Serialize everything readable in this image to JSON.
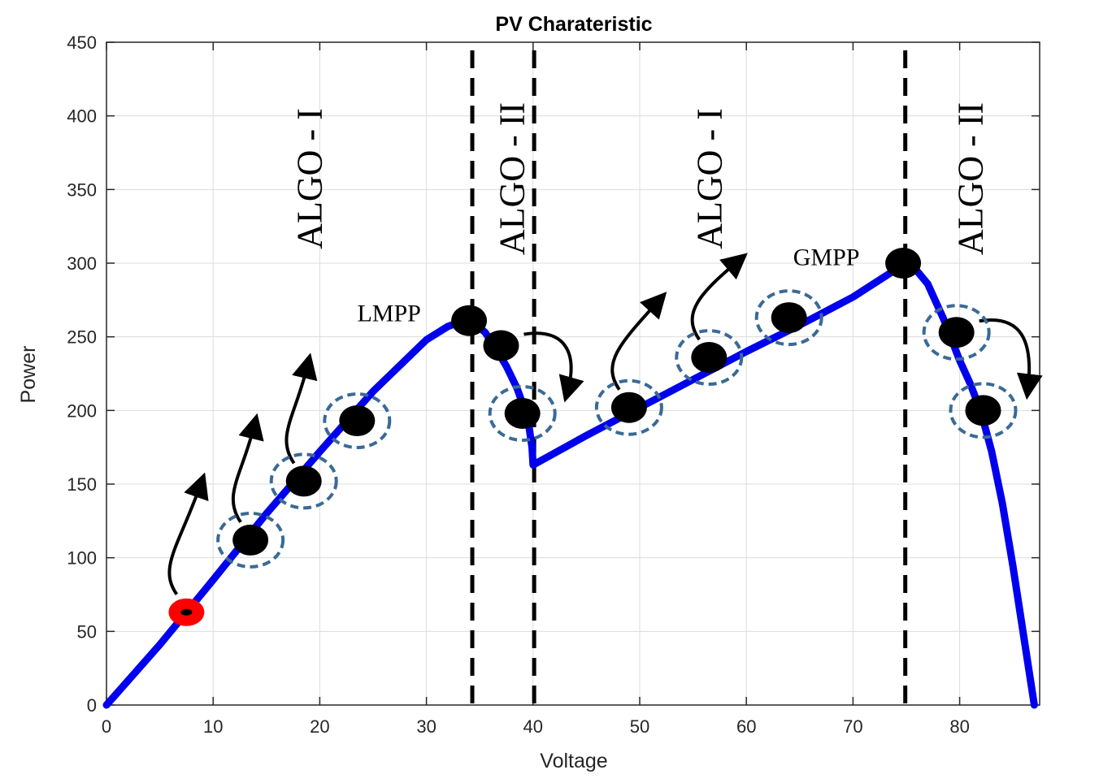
{
  "chart_data": {
    "type": "line",
    "title": "PV Charateristic",
    "xlabel": "Voltage",
    "ylabel": "Power",
    "xlim": [
      0,
      87.5
    ],
    "ylim": [
      0,
      450
    ],
    "xticks": [
      0,
      10,
      20,
      30,
      40,
      50,
      60,
      70,
      80
    ],
    "yticks": [
      0,
      50,
      100,
      150,
      200,
      250,
      300,
      350,
      400,
      450
    ],
    "grid": true,
    "series": [
      {
        "color": "#0000ee",
        "x": [
          0,
          5,
          10,
          15,
          20,
          25,
          28,
          30,
          32,
          33.5,
          34.5,
          35.5,
          36.5,
          37.5,
          38.5,
          39.5,
          39.9,
          40,
          45,
          50,
          55,
          60,
          65,
          70,
          73,
          74.5,
          75.5,
          77,
          78.5,
          80,
          81,
          82,
          83,
          84,
          85,
          86,
          87
        ],
        "y": [
          0,
          41,
          85,
          130,
          172,
          213,
          234,
          248,
          257,
          261,
          259,
          253,
          242,
          230,
          215,
          195,
          175,
          163,
          183,
          202,
          221,
          240,
          258,
          277,
          291,
          298,
          299,
          286,
          262,
          234,
          218,
          199,
          172,
          137,
          94,
          47,
          0
        ]
      }
    ],
    "vlines": [
      34.3,
      40.1,
      74.9
    ],
    "region_labels": [
      {
        "text": "ALGO - I",
        "x": 19
      },
      {
        "text": "ALGO - II",
        "x": 38
      },
      {
        "text": "ALGO - I",
        "x": 56.5
      },
      {
        "text": "ALGO - II",
        "x": 81
      }
    ],
    "annotations": [
      {
        "text": "LMPP",
        "x": 26.5,
        "y": 266
      },
      {
        "text": "GMPP",
        "x": 67.5,
        "y": 304
      }
    ],
    "start_point": {
      "x": 7.5,
      "y": 63,
      "color": "#ff0000"
    },
    "points": [
      {
        "x": 13.5,
        "y": 112,
        "circled": true
      },
      {
        "x": 18.5,
        "y": 152,
        "circled": true
      },
      {
        "x": 23.5,
        "y": 193,
        "circled": true
      },
      {
        "x": 34,
        "y": 261,
        "circled": false
      },
      {
        "x": 37,
        "y": 244,
        "circled": false
      },
      {
        "x": 39,
        "y": 198,
        "circled": true
      },
      {
        "x": 49,
        "y": 202,
        "circled": true
      },
      {
        "x": 56.5,
        "y": 236,
        "circled": true
      },
      {
        "x": 64,
        "y": 263,
        "circled": true
      },
      {
        "x": 74.7,
        "y": 300,
        "circled": false
      },
      {
        "x": 79.7,
        "y": 253,
        "circled": true
      },
      {
        "x": 82.2,
        "y": 200,
        "circled": true
      }
    ],
    "arrows": [
      {
        "from": [
          7.5,
          63
        ],
        "to": [
          13.5,
          112
        ]
      },
      {
        "from": [
          13.5,
          112
        ],
        "to": [
          18.5,
          152
        ]
      },
      {
        "from": [
          18.5,
          152
        ],
        "to": [
          23.5,
          193
        ]
      },
      {
        "from": [
          37,
          244
        ],
        "to": [
          39,
          198
        ]
      },
      {
        "from": [
          49,
          202
        ],
        "to": [
          56.5,
          236
        ]
      },
      {
        "from": [
          56.5,
          236
        ],
        "to": [
          64,
          263
        ]
      },
      {
        "from": [
          79.7,
          253
        ],
        "to": [
          82.2,
          200
        ]
      }
    ]
  }
}
